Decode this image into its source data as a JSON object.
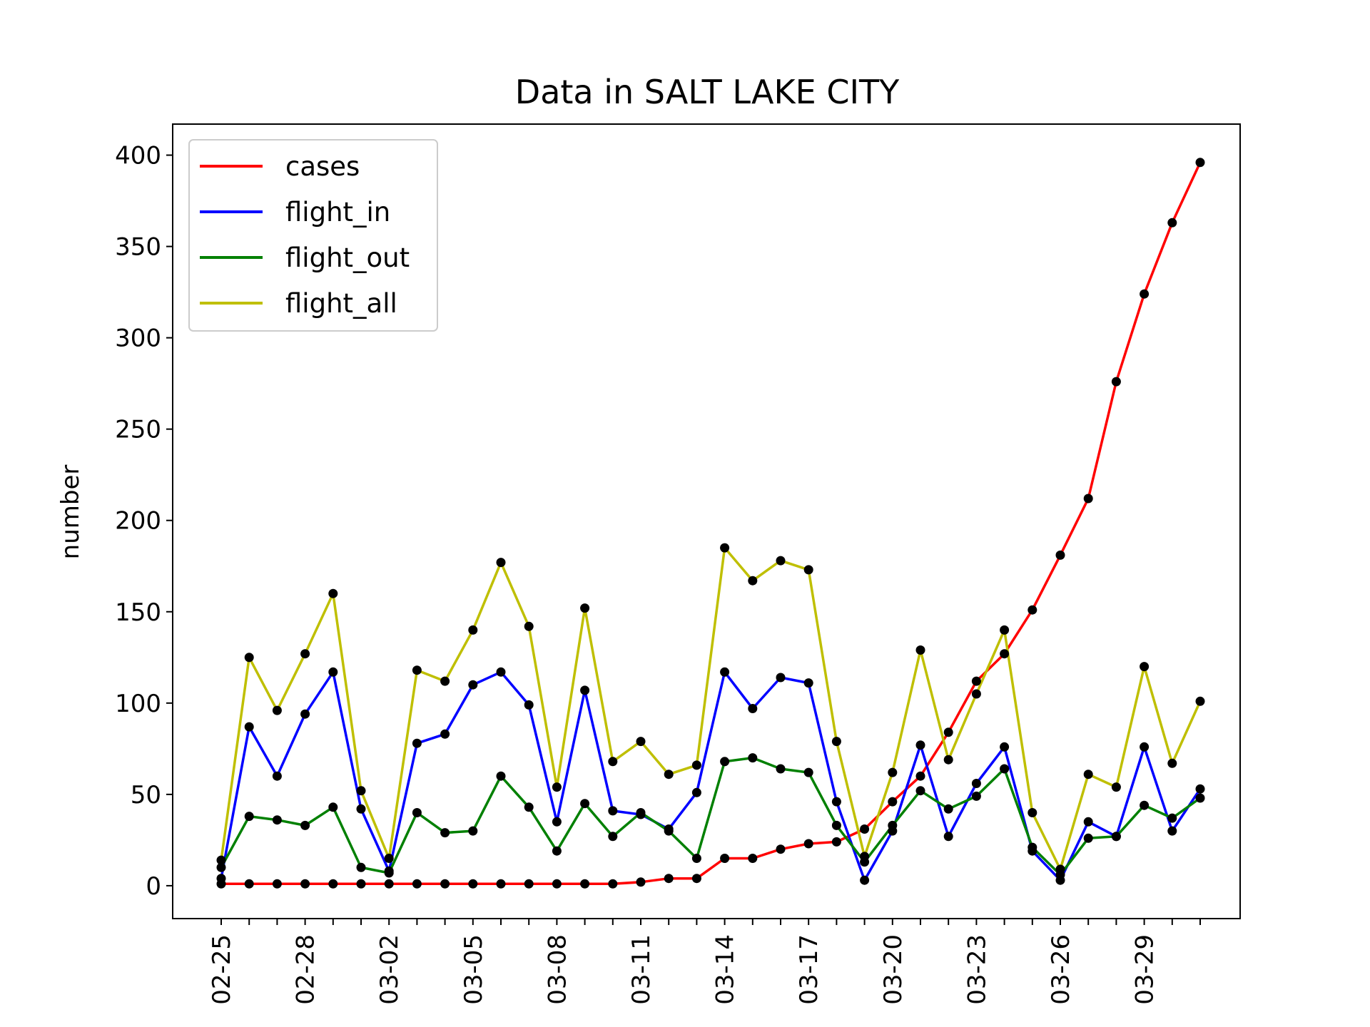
{
  "chart_data": {
    "type": "line",
    "title": "Data in SALT LAKE CITY",
    "xlabel": "",
    "ylabel": "number",
    "ylim": [
      -18,
      417
    ],
    "yticks": [
      0,
      50,
      100,
      150,
      200,
      250,
      300,
      350,
      400
    ],
    "x": [
      "02-25",
      "02-26",
      "02-27",
      "02-28",
      "02-29",
      "03-01",
      "03-02",
      "03-03",
      "03-04",
      "03-05",
      "03-06",
      "03-07",
      "03-08",
      "03-09",
      "03-10",
      "03-11",
      "03-12",
      "03-13",
      "03-14",
      "03-15",
      "03-16",
      "03-17",
      "03-18",
      "03-19",
      "03-20",
      "03-21",
      "03-22",
      "03-23",
      "03-24",
      "03-25",
      "03-26",
      "03-27",
      "03-28",
      "03-29",
      "03-30",
      "03-31"
    ],
    "xtick_labels": [
      "02-25",
      "02-28",
      "03-02",
      "03-05",
      "03-08",
      "03-11",
      "03-14",
      "03-17",
      "03-20",
      "03-23",
      "03-26",
      "03-29"
    ],
    "legend_position": "upper-left",
    "marker_color": "#000000",
    "series": [
      {
        "name": "cases",
        "color": "#ff0000",
        "values": [
          1,
          1,
          1,
          1,
          1,
          1,
          1,
          1,
          1,
          1,
          1,
          1,
          1,
          1,
          1,
          2,
          4,
          4,
          15,
          15,
          20,
          23,
          24,
          31,
          46,
          60,
          84,
          112,
          127,
          151,
          181,
          212,
          276,
          324,
          363,
          396
        ]
      },
      {
        "name": "flight_in",
        "color": "#0000ff",
        "values": [
          4,
          87,
          60,
          94,
          117,
          42,
          8,
          78,
          83,
          110,
          117,
          99,
          35,
          107,
          41,
          39,
          31,
          51,
          117,
          97,
          114,
          111,
          46,
          3,
          30,
          77,
          27,
          56,
          76,
          19,
          3,
          35,
          27,
          76,
          30,
          53
        ]
      },
      {
        "name": "flight_out",
        "color": "#008000",
        "values": [
          10,
          38,
          36,
          33,
          43,
          10,
          7,
          40,
          29,
          30,
          60,
          43,
          19,
          45,
          27,
          40,
          30,
          15,
          68,
          70,
          64,
          62,
          33,
          13,
          33,
          52,
          42,
          49,
          64,
          21,
          6,
          26,
          27,
          44,
          37,
          48
        ]
      },
      {
        "name": "flight_all",
        "color": "#bfbf00",
        "values": [
          14,
          125,
          96,
          127,
          160,
          52,
          15,
          118,
          112,
          140,
          177,
          142,
          54,
          152,
          68,
          79,
          61,
          66,
          185,
          167,
          178,
          173,
          79,
          16,
          62,
          129,
          69,
          105,
          140,
          40,
          9,
          61,
          54,
          120,
          67,
          101
        ]
      }
    ]
  }
}
